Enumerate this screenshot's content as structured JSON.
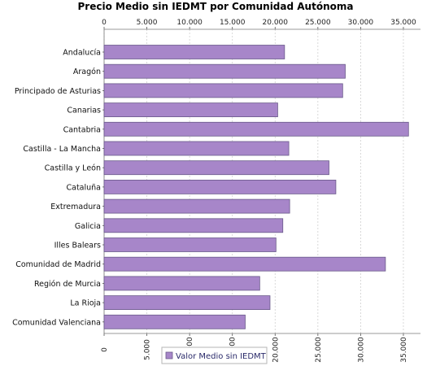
{
  "chart_data": {
    "type": "bar",
    "orientation": "horizontal",
    "title": "Precio Medio sin IEDMT por Comunidad Autónoma",
    "xlabel": "",
    "ylabel": "",
    "xlim": [
      0,
      37000
    ],
    "x_ticks": [
      0,
      5000,
      10000,
      15000,
      20000,
      25000,
      30000,
      35000
    ],
    "x_tick_labels": [
      "0",
      "5.000",
      "10.000",
      "15.000",
      "20.000",
      "25.000",
      "30.000",
      "35.000"
    ],
    "grid": true,
    "legend_position": "bottom",
    "bar_color": "#a786c9",
    "bar_stroke": "#6a5a8a",
    "categories": [
      "Andalucía",
      "Aragón",
      "Principado de Asturias",
      "Canarias",
      "Cantabria",
      "Castilla - La Mancha",
      "Castilla y León",
      "Cataluña",
      "Extremadura",
      "Galicia",
      "Illes Balears",
      "Comunidad de Madrid",
      "Región de Murcia",
      "La Rioja",
      "Comunidad Valenciana"
    ],
    "series": [
      {
        "name": "Valor Medio sin IEDMT",
        "values": [
          21100,
          28200,
          27900,
          20300,
          35600,
          21600,
          26300,
          27100,
          21700,
          20900,
          20100,
          32900,
          18200,
          19400,
          16500
        ]
      }
    ]
  }
}
